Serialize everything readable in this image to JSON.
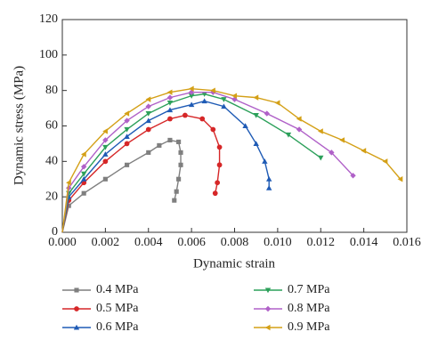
{
  "chart_data": {
    "type": "line",
    "x_label": "Dynamic strain",
    "y_label": "Dynamic stress (MPa)",
    "xlim": [
      0,
      0.016
    ],
    "ylim": [
      0,
      120
    ],
    "xticks": [
      {
        "value": 0,
        "label": "0.000"
      },
      {
        "value": 0.002,
        "label": "0.002"
      },
      {
        "value": 0.004,
        "label": "0.004"
      },
      {
        "value": 0.006,
        "label": "0.006"
      },
      {
        "value": 0.008,
        "label": "0.008"
      },
      {
        "value": 0.01,
        "label": "0.010"
      },
      {
        "value": 0.012,
        "label": "0.012"
      },
      {
        "value": 0.014,
        "label": "0.014"
      },
      {
        "value": 0.016,
        "label": "0.016"
      }
    ],
    "yticks": [
      0,
      20,
      40,
      60,
      80,
      100,
      120
    ],
    "legend": "bottom",
    "grid": false,
    "series": [
      {
        "name": "0.4 MPa",
        "color": "#7f7f7f",
        "marker": "square",
        "x": [
          0,
          0.0003,
          0.001,
          0.002,
          0.003,
          0.004,
          0.0045,
          0.005,
          0.0054,
          0.0055,
          0.0055,
          0.0054,
          0.0053,
          0.0052
        ],
        "values": [
          0,
          15,
          22,
          30,
          38,
          45,
          49,
          52,
          51,
          45,
          38,
          30,
          23,
          18
        ]
      },
      {
        "name": "0.5 MPa",
        "color": "#d62728",
        "marker": "circle",
        "x": [
          0,
          0.0003,
          0.001,
          0.002,
          0.003,
          0.004,
          0.005,
          0.0057,
          0.0065,
          0.007,
          0.0073,
          0.0073,
          0.0072,
          0.0071
        ],
        "values": [
          0,
          18,
          28,
          40,
          50,
          58,
          64,
          66,
          64,
          58,
          48,
          38,
          28,
          22
        ]
      },
      {
        "name": "0.6 MPa",
        "color": "#1f5bb5",
        "marker": "triangle-up",
        "x": [
          0,
          0.0003,
          0.001,
          0.002,
          0.003,
          0.004,
          0.005,
          0.006,
          0.0066,
          0.0075,
          0.0085,
          0.009,
          0.0094,
          0.0096,
          0.0096
        ],
        "values": [
          0,
          20,
          30,
          44,
          54,
          63,
          69,
          72,
          74,
          71,
          60,
          50,
          40,
          30,
          25
        ]
      },
      {
        "name": "0.7 MPa",
        "color": "#2ca05a",
        "marker": "triangle-down",
        "x": [
          0,
          0.0003,
          0.001,
          0.002,
          0.003,
          0.004,
          0.005,
          0.006,
          0.0066,
          0.0075,
          0.009,
          0.0105,
          0.012
        ],
        "values": [
          0,
          22,
          33,
          48,
          58,
          67,
          73,
          77,
          78,
          75,
          66,
          55,
          42
        ]
      },
      {
        "name": "0.8 MPa",
        "color": "#b061c8",
        "marker": "diamond",
        "x": [
          0,
          0.0003,
          0.001,
          0.002,
          0.003,
          0.004,
          0.005,
          0.006,
          0.007,
          0.008,
          0.0095,
          0.011,
          0.0125,
          0.0135
        ],
        "values": [
          0,
          25,
          37,
          52,
          63,
          71,
          76,
          79,
          79,
          75,
          67,
          58,
          45,
          32
        ]
      },
      {
        "name": "0.9 MPa",
        "color": "#d4a017",
        "marker": "triangle-left",
        "x": [
          0,
          0.0003,
          0.001,
          0.002,
          0.003,
          0.004,
          0.005,
          0.006,
          0.007,
          0.008,
          0.009,
          0.01,
          0.011,
          0.012,
          0.013,
          0.014,
          0.015,
          0.0157
        ],
        "values": [
          0,
          28,
          44,
          57,
          67,
          75,
          79,
          81,
          80,
          77,
          76,
          73,
          64,
          57,
          52,
          46,
          40,
          30
        ]
      }
    ]
  }
}
